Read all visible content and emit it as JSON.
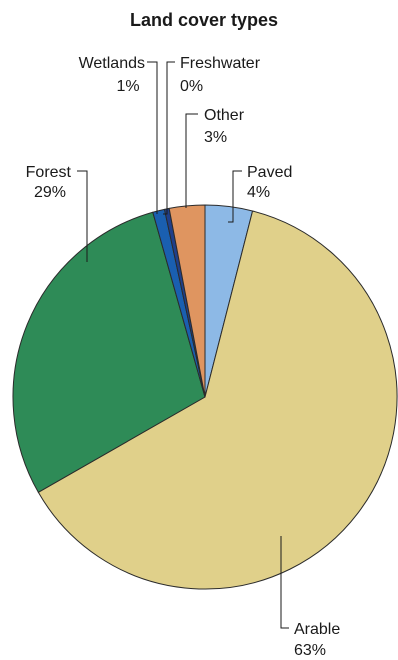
{
  "chart_data": {
    "type": "pie",
    "title": "Land cover types",
    "slices": [
      {
        "label": "Paved",
        "pct_label": "4%",
        "value": 4.0,
        "color": "#8db9e6"
      },
      {
        "label": "Arable",
        "pct_label": "63%",
        "value": 63.0,
        "color": "#e0d08a"
      },
      {
        "label": "Forest",
        "pct_label": "29%",
        "value": 29.0,
        "color": "#2e8b57"
      },
      {
        "label": "Wetlands",
        "pct_label": "1%",
        "value": 1.0,
        "color": "#1a5fb0"
      },
      {
        "label": "Freshwater",
        "pct_label": "0%",
        "value": 0.4,
        "color": "#1f3f8a"
      },
      {
        "label": "Other",
        "pct_label": "3%",
        "value": 3.0,
        "color": "#df9560"
      }
    ]
  }
}
